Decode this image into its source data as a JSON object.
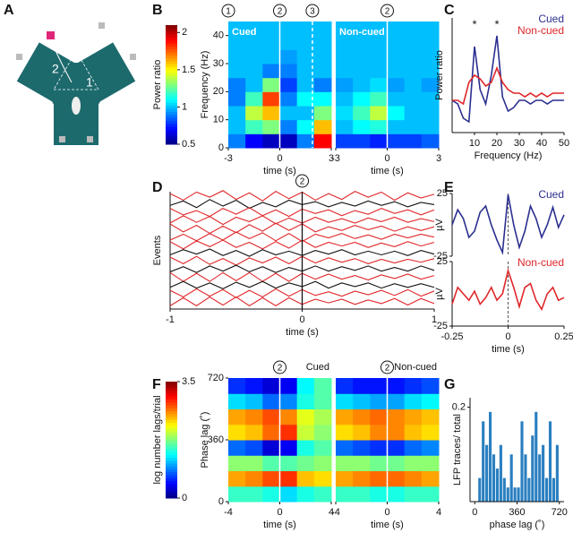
{
  "panel_labels": [
    "A",
    "B",
    "C",
    "D",
    "E",
    "F",
    "G"
  ],
  "maze": {
    "arm_labels": [
      "1",
      "2",
      "3"
    ]
  },
  "chart_data": [
    {
      "type": "heatmap",
      "title": "Cued",
      "xlabel": "time (s)",
      "ylabel": "Frequency (Hz)",
      "xlim": [
        -3,
        3
      ],
      "ylim": [
        0,
        45
      ],
      "xticks": [
        -3,
        0,
        3
      ],
      "yticks": [
        0,
        10,
        20,
        30,
        40
      ],
      "clim": [
        0.5,
        2.1
      ],
      "colormap": [
        "#00007f",
        "#0000ff",
        "#007fff",
        "#00ffff",
        "#7fff7f",
        "#ffff00",
        "#ff7f00",
        "#ff0000",
        "#7f0000"
      ],
      "colorbar": {
        "label": "Power ratio",
        "ticks": [
          0.5,
          1,
          1.5,
          2
        ]
      },
      "vlines": [
        0
      ],
      "dashed_vlines": [
        1.9
      ],
      "event_markers": [
        {
          "x": -3,
          "label": "1"
        },
        {
          "x": 0,
          "label": "2"
        },
        {
          "x": 1.9,
          "label": "3"
        }
      ],
      "values": [
        [
          0.9,
          0.7,
          0.6,
          0.6,
          0.9,
          1.9
        ],
        [
          1.0,
          1.2,
          1.3,
          0.9,
          1.1,
          1.6
        ],
        [
          1.0,
          1.4,
          1.6,
          1.0,
          1.0,
          1.3
        ],
        [
          0.9,
          1.2,
          1.8,
          0.9,
          1.1,
          1.1
        ],
        [
          0.9,
          1.0,
          1.3,
          0.8,
          1.0,
          0.9
        ],
        [
          1.0,
          1.0,
          0.9,
          0.9,
          1.0,
          1.0
        ],
        [
          1.0,
          1.0,
          1.0,
          0.95,
          1.0,
          1.0
        ],
        [
          1.0,
          1.0,
          1.0,
          1.0,
          1.0,
          1.0
        ],
        [
          1.0,
          1.0,
          1.0,
          1.0,
          1.0,
          1.0
        ]
      ]
    },
    {
      "type": "heatmap",
      "title": "Non-cued",
      "xlabel": "time (s)",
      "xlim": [
        -3,
        3
      ],
      "ylim": [
        0,
        45
      ],
      "xticks": [
        -3,
        0,
        3
      ],
      "clim": [
        0.5,
        2.1
      ],
      "colormap": [
        "#00007f",
        "#0000ff",
        "#007fff",
        "#00ffff",
        "#7fff7f",
        "#ffff00",
        "#ff7f00",
        "#ff0000",
        "#7f0000"
      ],
      "vlines": [
        0
      ],
      "event_markers": [
        {
          "x": 0,
          "label": "2"
        }
      ],
      "values": [
        [
          0.8,
          0.8,
          0.75,
          0.8,
          0.8,
          0.85
        ],
        [
          1.0,
          1.1,
          1.15,
          1.0,
          1.0,
          1.0
        ],
        [
          1.05,
          1.2,
          1.4,
          1.1,
          1.0,
          1.0
        ],
        [
          1.0,
          1.1,
          1.2,
          1.0,
          1.0,
          1.0
        ],
        [
          0.95,
          1.0,
          1.05,
          0.95,
          1.0,
          0.95
        ],
        [
          1.0,
          1.0,
          1.0,
          1.0,
          1.0,
          1.0
        ],
        [
          1.0,
          1.0,
          1.0,
          1.0,
          1.0,
          1.0
        ],
        [
          1.0,
          1.0,
          1.0,
          1.0,
          1.0,
          1.0
        ],
        [
          1.0,
          1.0,
          1.0,
          1.0,
          1.0,
          1.0
        ]
      ]
    },
    {
      "type": "line",
      "xlabel": "Frequency (Hz)",
      "ylabel": "Power ratio",
      "xlim": [
        0,
        50
      ],
      "ylim": [
        0.4,
        2
      ],
      "xticks": [
        10,
        20,
        30,
        40,
        50
      ],
      "legend": "top-right",
      "annotations": [
        {
          "x": 10,
          "y": 1.9,
          "text": "*"
        },
        {
          "x": 20,
          "y": 1.9,
          "text": "*"
        }
      ],
      "x": [
        0,
        2.5,
        5,
        7.5,
        10,
        12.5,
        15,
        17.5,
        20,
        22.5,
        25,
        27.5,
        30,
        32.5,
        35,
        37.5,
        40,
        42.5,
        45,
        47.5,
        50
      ],
      "series": [
        {
          "name": "Cued",
          "color": "#2b2f8f",
          "values": [
            0.85,
            0.8,
            0.6,
            0.55,
            1.6,
            1.0,
            0.8,
            1.2,
            1.75,
            0.9,
            0.7,
            0.75,
            0.85,
            0.85,
            0.8,
            0.85,
            0.85,
            0.8,
            0.85,
            0.85,
            0.85
          ]
        },
        {
          "name": "Non-cued",
          "color": "#e0262a",
          "values": [
            0.85,
            0.85,
            0.8,
            1.1,
            1.2,
            1.15,
            1.05,
            1.1,
            1.3,
            1.1,
            1.0,
            0.95,
            0.95,
            0.9,
            0.95,
            0.9,
            0.95,
            0.9,
            0.95,
            0.95,
            0.95
          ]
        }
      ]
    },
    {
      "type": "traces",
      "xlabel": "time (s)",
      "ylabel": "Events",
      "xlim": [
        -1,
        1
      ],
      "xticks": [
        -1,
        0,
        1
      ],
      "vlines": [
        0
      ],
      "event_markers": [
        {
          "x": 0,
          "label": "2"
        }
      ],
      "x": [
        -1,
        -0.9,
        -0.8,
        -0.7,
        -0.6,
        -0.5,
        -0.4,
        -0.3,
        -0.2,
        -0.1,
        0,
        0.1,
        0.2,
        0.3,
        0.4,
        0.5,
        0.6,
        0.7,
        0.8,
        0.9,
        1
      ],
      "series": [
        {
          "color": "#e0262a",
          "values": [
            0.3,
            -0.6,
            0.5,
            -0.2,
            0.7,
            -0.5,
            0.4,
            -0.7,
            0.6,
            -0.4,
            0.5,
            -0.6,
            0.3,
            -0.5,
            0.6,
            -0.2,
            0.5,
            -0.6,
            0.4,
            -0.3,
            0.2
          ]
        },
        {
          "color": "#111111",
          "values": [
            -0.2,
            0.4,
            -0.5,
            0.6,
            -0.3,
            0.5,
            -0.6,
            0.2,
            -0.4,
            0.5,
            -0.1,
            0.3,
            -0.4,
            0.2,
            -0.3,
            0.4,
            -0.2,
            0.3,
            -0.4,
            0.2,
            -0.1
          ]
        },
        {
          "color": "#e0262a",
          "values": [
            0.5,
            -0.4,
            0.2,
            -0.6,
            0.5,
            -0.3,
            0.6,
            -0.5,
            0.3,
            -0.6,
            0.4,
            -0.2,
            0.3,
            -0.5,
            0.2,
            -0.3,
            0.5,
            -0.2,
            0.3,
            -0.4,
            0.3
          ]
        },
        {
          "color": "#e0262a",
          "values": [
            -0.4,
            0.6,
            -0.3,
            0.5,
            -0.6,
            0.4,
            -0.2,
            0.6,
            -0.5,
            0.3,
            -0.4,
            0.4,
            -0.3,
            0.2,
            -0.4,
            0.3,
            -0.2,
            0.4,
            -0.3,
            0.2,
            -0.2
          ]
        },
        {
          "color": "#e0262a",
          "values": [
            0.6,
            -0.5,
            0.4,
            -0.7,
            0.3,
            -0.6,
            0.5,
            -0.4,
            0.7,
            -0.3,
            0.6,
            -0.5,
            0.2,
            -0.3,
            0.4,
            -0.2,
            0.3,
            -0.4,
            0.2,
            -0.3,
            0.2
          ]
        },
        {
          "color": "#e0262a",
          "values": [
            -0.5,
            0.3,
            -0.6,
            0.4,
            -0.5,
            0.6,
            -0.3,
            0.5,
            -0.6,
            0.4,
            -0.7,
            0.3,
            -0.2,
            0.4,
            -0.3,
            0.2,
            -0.4,
            0.3,
            -0.2,
            0.3,
            -0.1
          ]
        },
        {
          "color": "#e0262a",
          "values": [
            0.4,
            -0.6,
            0.5,
            -0.3,
            0.6,
            -0.4,
            0.3,
            -0.6,
            0.4,
            -0.5,
            0.6,
            -0.4,
            0.3,
            -0.2,
            0.3,
            -0.4,
            0.2,
            -0.3,
            0.4,
            -0.2,
            0.3
          ]
        },
        {
          "color": "#111111",
          "values": [
            -0.3,
            0.4,
            -0.2,
            0.5,
            -0.4,
            0.3,
            -0.5,
            0.4,
            -0.3,
            0.2,
            -0.4,
            0.3,
            -0.2,
            0.4,
            -0.3,
            0.2,
            -0.3,
            0.2,
            -0.4,
            0.3,
            -0.2
          ]
        },
        {
          "color": "#e0262a",
          "values": [
            0.5,
            -0.4,
            0.6,
            -0.5,
            0.3,
            -0.6,
            0.4,
            -0.3,
            0.5,
            -0.4,
            0.6,
            -0.3,
            0.4,
            -0.2,
            0.3,
            -0.4,
            0.2,
            -0.3,
            0.2,
            -0.2,
            0.3
          ]
        },
        {
          "color": "#111111",
          "values": [
            -0.4,
            0.3,
            -0.5,
            0.4,
            -0.3,
            0.5,
            -0.4,
            0.3,
            -0.5,
            0.2,
            -0.3,
            0.4,
            -0.3,
            0.3,
            -0.2,
            0.4,
            -0.3,
            0.2,
            -0.3,
            0.4,
            -0.2
          ]
        },
        {
          "color": "#e0262a",
          "values": [
            0.6,
            -0.6,
            0.5,
            -0.6,
            0.6,
            -0.5,
            0.6,
            -0.6,
            0.5,
            -0.6,
            0.5,
            -0.3,
            0.4,
            -0.3,
            0.2,
            -0.4,
            0.3,
            -0.2,
            0.4,
            -0.3,
            0.2
          ]
        },
        {
          "color": "#111111",
          "values": [
            -0.3,
            0.5,
            -0.4,
            0.3,
            -0.5,
            0.4,
            -0.3,
            0.5,
            -0.4,
            0.3,
            -0.2,
            0.5,
            -0.4,
            0.3,
            -0.2,
            0.3,
            -0.4,
            0.2,
            -0.3,
            0.2,
            -0.3
          ]
        },
        {
          "color": "#e0262a",
          "values": [
            0.4,
            -0.5,
            0.6,
            -0.4,
            0.5,
            -0.6,
            0.4,
            -0.5,
            0.6,
            -0.4,
            0.5,
            -0.3,
            0.2,
            -0.4,
            0.3,
            -0.2,
            0.4,
            -0.3,
            0.5,
            -0.4,
            0.3
          ]
        },
        {
          "color": "#e0262a",
          "values": [
            -0.6,
            0.5,
            -0.6,
            0.6,
            -0.5,
            0.6,
            -0.6,
            0.5,
            -0.6,
            0.5,
            -0.4,
            0.3,
            -0.2,
            0.3,
            -0.4,
            0.2,
            -0.3,
            0.4,
            -0.5,
            0.4,
            -0.3
          ]
        }
      ]
    },
    {
      "type": "line",
      "ylabel": "µV",
      "xlim": [
        -0.25,
        0.25
      ],
      "ylim": [
        -25,
        25
      ],
      "yticks": [
        25,
        -25
      ],
      "vlines": [
        0
      ],
      "legend": "top-right",
      "x": [
        -0.25,
        -0.225,
        -0.2,
        -0.175,
        -0.15,
        -0.125,
        -0.1,
        -0.075,
        -0.05,
        -0.025,
        0,
        0.025,
        0.05,
        0.075,
        0.1,
        0.125,
        0.15,
        0.175,
        0.2,
        0.225,
        0.25
      ],
      "series": [
        {
          "name": "Cued",
          "color": "#2b2f8f",
          "values": [
            0,
            12,
            5,
            -10,
            -5,
            10,
            15,
            0,
            -12,
            -22,
            24,
            0,
            -18,
            -5,
            15,
            5,
            -10,
            0,
            14,
            -2,
            8
          ]
        }
      ]
    },
    {
      "type": "line",
      "ylabel": "µV",
      "xlabel": "time (s)",
      "xlim": [
        -0.25,
        0.25
      ],
      "ylim": [
        -25,
        25
      ],
      "yticks": [
        25,
        -25
      ],
      "xticks": [
        -0.25,
        0,
        0.25
      ],
      "vlines": [
        0
      ],
      "legend": "top-right",
      "x": [
        -0.25,
        -0.225,
        -0.2,
        -0.175,
        -0.15,
        -0.125,
        -0.1,
        -0.075,
        -0.05,
        -0.025,
        0,
        0.025,
        0.05,
        0.075,
        0.1,
        0.125,
        0.15,
        0.175,
        0.2,
        0.225,
        0.25
      ],
      "series": [
        {
          "name": "Non-cued",
          "color": "#e0262a",
          "values": [
            -8,
            5,
            0,
            -5,
            2,
            -8,
            -3,
            5,
            -5,
            0,
            18,
            5,
            -10,
            5,
            8,
            -5,
            -12,
            0,
            5,
            -5,
            -3
          ]
        }
      ]
    },
    {
      "type": "heatmap",
      "title": "Cued",
      "xlabel": "time (s)",
      "ylabel": "Phase lag (˚)",
      "xlim": [
        -4,
        4
      ],
      "ylim": [
        0,
        720
      ],
      "xticks": [
        -4,
        0,
        4
      ],
      "yticks": [
        0,
        360,
        720
      ],
      "clim": [
        0,
        3.5
      ],
      "colormap": [
        "#00007f",
        "#0000ff",
        "#007fff",
        "#00ffff",
        "#7fff7f",
        "#ffff00",
        "#ff7f00",
        "#ff0000",
        "#7f0000"
      ],
      "colorbar": {
        "label": "log number lags/trial",
        "ticks": [
          0,
          3.5
        ]
      },
      "vlines": [
        0
      ],
      "event_markers": [
        {
          "x": 0,
          "label": "2"
        }
      ],
      "values": [
        [
          1.5,
          1.5,
          1.4,
          1.2,
          1.4,
          1.5
        ],
        [
          2.5,
          2.6,
          2.8,
          2.9,
          2.4,
          2.3
        ],
        [
          1.8,
          1.8,
          1.6,
          1.6,
          1.7,
          1.8
        ],
        [
          0.8,
          0.7,
          0.3,
          0.4,
          1.4,
          1.6
        ],
        [
          2.3,
          2.4,
          2.7,
          2.9,
          2.0,
          1.8
        ],
        [
          2.5,
          2.6,
          2.8,
          2.6,
          2.1,
          1.9
        ],
        [
          1.2,
          1.1,
          0.8,
          0.9,
          1.4,
          1.6
        ],
        [
          0.6,
          0.5,
          0.3,
          0.4,
          1.3,
          1.6
        ]
      ]
    },
    {
      "type": "heatmap",
      "title": "Non-cued",
      "xlabel": "time (s)",
      "xlim": [
        -4,
        4
      ],
      "ylim": [
        0,
        720
      ],
      "xticks": [
        -4,
        0,
        4
      ],
      "clim": [
        0,
        3.5
      ],
      "colormap": [
        "#00007f",
        "#0000ff",
        "#007fff",
        "#00ffff",
        "#7fff7f",
        "#ffff00",
        "#ff7f00",
        "#ff0000",
        "#7f0000"
      ],
      "vlines": [
        0
      ],
      "event_markers": [
        {
          "x": 0,
          "label": "2"
        }
      ],
      "values": [
        [
          1.5,
          1.5,
          1.4,
          1.4,
          1.5,
          1.5
        ],
        [
          2.5,
          2.6,
          2.7,
          2.7,
          2.6,
          2.5
        ],
        [
          1.8,
          1.8,
          1.7,
          1.7,
          1.8,
          1.8
        ],
        [
          0.8,
          0.7,
          0.6,
          0.6,
          0.8,
          0.9
        ],
        [
          2.3,
          2.4,
          2.6,
          2.6,
          2.4,
          2.3
        ],
        [
          2.5,
          2.6,
          2.7,
          2.6,
          2.5,
          2.4
        ],
        [
          1.2,
          1.1,
          1.0,
          1.0,
          1.2,
          1.3
        ],
        [
          0.6,
          0.5,
          0.5,
          0.5,
          0.6,
          0.7
        ]
      ]
    },
    {
      "type": "histogram",
      "xlabel": "phase lag (˚)",
      "ylabel": "LFP traces/ total",
      "color": "#2a7fc0",
      "xlim": [
        -40,
        760
      ],
      "ylim": [
        0,
        0.22
      ],
      "xticks": [
        0,
        360,
        720
      ],
      "yticks": [
        0.2
      ],
      "bins": [
        0,
        30,
        60,
        90,
        120,
        150,
        180,
        210,
        240,
        270,
        300,
        330,
        360,
        390,
        420,
        450,
        480,
        510,
        540,
        570,
        600,
        630,
        660,
        690,
        720
      ],
      "counts": [
        0,
        0.05,
        0.17,
        0.12,
        0.19,
        0.1,
        0.07,
        0.12,
        0.05,
        0.03,
        0.1,
        0.03,
        0.03,
        0.17,
        0.1,
        0.05,
        0.14,
        0.19,
        0.1,
        0.12,
        0.05,
        0.17,
        0.05,
        0.12
      ]
    }
  ]
}
